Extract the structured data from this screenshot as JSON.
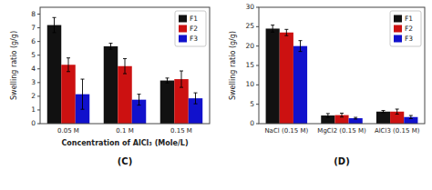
{
  "chart_data": [
    {
      "type": "bar",
      "title": "(C)",
      "x_label": "Concentration of AlCl₃ (Mole/L)",
      "y_label": "Swelling ratio (g/g)",
      "categories": [
        "0.05 M",
        "0.1 M",
        "0.15 M"
      ],
      "series": [
        {
          "name": "F1",
          "color": "#111111",
          "values": [
            7.2,
            5.65,
            3.15
          ],
          "errors": [
            0.55,
            0.22,
            0.18
          ]
        },
        {
          "name": "F2",
          "color": "#cc1111",
          "values": [
            4.3,
            4.2,
            3.25
          ],
          "errors": [
            0.5,
            0.55,
            0.6
          ]
        },
        {
          "name": "F3",
          "color": "#1111cc",
          "values": [
            2.15,
            1.75,
            1.85
          ],
          "errors": [
            1.1,
            0.4,
            0.4
          ]
        }
      ],
      "ylim": [
        0,
        8.5
      ],
      "yticks": [
        0,
        1,
        2,
        3,
        4,
        5,
        6,
        7,
        8
      ],
      "legend": "upper right"
    },
    {
      "type": "bar",
      "title": "(D)",
      "y_label": "Swelling ratio (g/g)",
      "categories": [
        "NaCl (0.15 M)",
        "MgCl2 (0.15 M)",
        "AlCl3 (0.15 M)"
      ],
      "series": [
        {
          "name": "F1",
          "color": "#111111",
          "values": [
            24.5,
            2.1,
            3.1
          ],
          "errors": [
            0.9,
            0.5,
            0.28
          ]
        },
        {
          "name": "F2",
          "color": "#cc1111",
          "values": [
            23.5,
            2.2,
            3.1
          ],
          "errors": [
            0.8,
            0.5,
            0.65
          ]
        },
        {
          "name": "F3",
          "color": "#1111cc",
          "values": [
            20.0,
            1.4,
            1.7
          ],
          "errors": [
            1.4,
            0.22,
            0.4
          ]
        }
      ],
      "ylim": [
        0,
        30
      ],
      "yticks": [
        0,
        5,
        10,
        15,
        20,
        25,
        30
      ],
      "legend": "upper right"
    }
  ]
}
